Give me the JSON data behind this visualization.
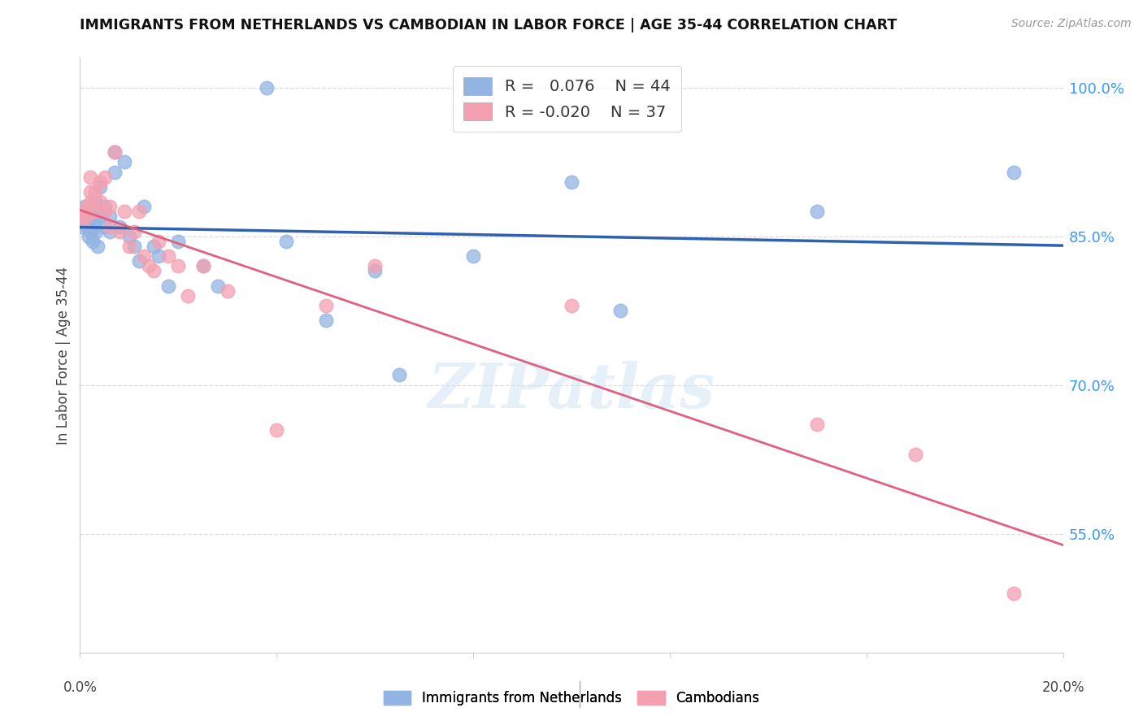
{
  "title": "IMMIGRANTS FROM NETHERLANDS VS CAMBODIAN IN LABOR FORCE | AGE 35-44 CORRELATION CHART",
  "source": "Source: ZipAtlas.com",
  "ylabel": "In Labor Force | Age 35-44",
  "ytick_labels": [
    "100.0%",
    "85.0%",
    "70.0%",
    "55.0%"
  ],
  "ytick_values": [
    1.0,
    0.85,
    0.7,
    0.55
  ],
  "xlim": [
    0.0,
    0.2
  ],
  "ylim": [
    0.43,
    1.03
  ],
  "netherlands_R": 0.076,
  "netherlands_N": 44,
  "cambodian_R": -0.02,
  "cambodian_N": 37,
  "netherlands_color": "#92b4e3",
  "cambodian_color": "#f4a0b0",
  "netherlands_line_color": "#3060b0",
  "cambodian_line_color": "#e06080",
  "watermark": "ZIPatlas",
  "background_color": "#ffffff",
  "grid_color": "#dddddd",
  "netherlands_x": [
    0.0005,
    0.001,
    0.0012,
    0.0015,
    0.0018,
    0.002,
    0.002,
    0.0022,
    0.0025,
    0.003,
    0.003,
    0.003,
    0.0032,
    0.0035,
    0.004,
    0.004,
    0.005,
    0.005,
    0.006,
    0.006,
    0.007,
    0.007,
    0.008,
    0.009,
    0.01,
    0.011,
    0.012,
    0.013,
    0.015,
    0.016,
    0.018,
    0.02,
    0.025,
    0.028,
    0.038,
    0.042,
    0.05,
    0.06,
    0.065,
    0.08,
    0.1,
    0.11,
    0.15,
    0.19
  ],
  "netherlands_y": [
    0.86,
    0.88,
    0.87,
    0.86,
    0.85,
    0.875,
    0.86,
    0.855,
    0.845,
    0.885,
    0.87,
    0.86,
    0.855,
    0.84,
    0.9,
    0.87,
    0.88,
    0.86,
    0.87,
    0.855,
    0.935,
    0.915,
    0.86,
    0.925,
    0.85,
    0.84,
    0.825,
    0.88,
    0.84,
    0.83,
    0.8,
    0.845,
    0.82,
    0.8,
    1.0,
    0.845,
    0.765,
    0.815,
    0.71,
    0.83,
    0.905,
    0.775,
    0.875,
    0.915
  ],
  "cambodian_x": [
    0.0005,
    0.001,
    0.0012,
    0.0015,
    0.002,
    0.002,
    0.0022,
    0.003,
    0.003,
    0.004,
    0.004,
    0.005,
    0.005,
    0.006,
    0.006,
    0.007,
    0.008,
    0.009,
    0.01,
    0.011,
    0.012,
    0.013,
    0.014,
    0.015,
    0.016,
    0.018,
    0.02,
    0.022,
    0.025,
    0.03,
    0.04,
    0.05,
    0.06,
    0.1,
    0.15,
    0.19,
    0.17
  ],
  "cambodian_y": [
    0.865,
    0.875,
    0.87,
    0.88,
    0.91,
    0.895,
    0.885,
    0.895,
    0.875,
    0.905,
    0.885,
    0.91,
    0.875,
    0.88,
    0.86,
    0.935,
    0.855,
    0.875,
    0.84,
    0.855,
    0.875,
    0.83,
    0.82,
    0.815,
    0.845,
    0.83,
    0.82,
    0.79,
    0.82,
    0.795,
    0.655,
    0.78,
    0.82,
    0.78,
    0.66,
    0.49,
    0.63
  ]
}
